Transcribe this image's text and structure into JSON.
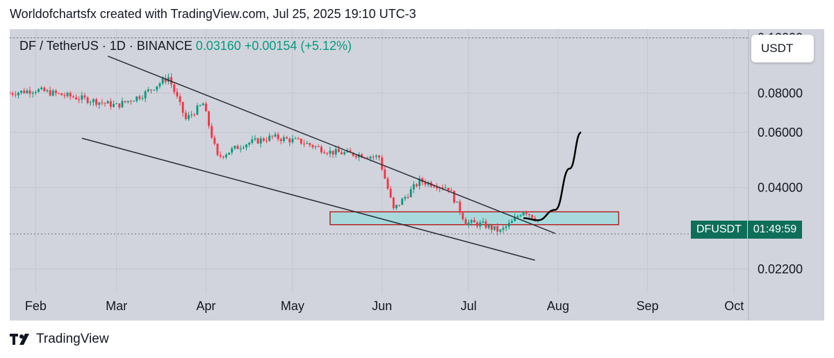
{
  "header": {
    "attribution": "Worldofchartsfx created with TradingView.com, Jul 25, 2025 19:10 UTC-3"
  },
  "legend": {
    "symbol": "DF / TetherUS · 1D · BINANCE",
    "price": "0.03160",
    "change": "+0.00154 (+5.12%)"
  },
  "currency_button": "USDT",
  "price_tag": {
    "symbol": "DFUSDT",
    "countdown": "01:49:59"
  },
  "footer": {
    "brand": "TradingView"
  },
  "colors": {
    "up": "#089981",
    "down": "#f23645",
    "background": "#d1d4dc",
    "zone_fill": "#a8dadd",
    "zone_border": "#b22222"
  },
  "chart_data": {
    "type": "candlestick",
    "x_axis": {
      "labels": [
        "Feb",
        "Mar",
        "Apr",
        "May",
        "Jun",
        "Jul",
        "Aug",
        "Sep",
        "Oct"
      ],
      "range": [
        "2025-01-23",
        "2025-10-06"
      ]
    },
    "y_axis": {
      "scale": "log",
      "labels": [
        "0.12000",
        "0.08000",
        "0.06000",
        "0.04000",
        "0.02200"
      ],
      "range": [
        0.0185,
        0.128
      ]
    },
    "grid": true,
    "series": [
      {
        "x": [
          "2025-01-23",
          "2025-02-01",
          "2025-02-10",
          "2025-02-20",
          "2025-03-01",
          "2025-03-10",
          "2025-03-19",
          "2025-03-25",
          "2025-03-31",
          "2025-04-05",
          "2025-04-14",
          "2025-04-24",
          "2025-05-04",
          "2025-05-14",
          "2025-05-24",
          "2025-05-31",
          "2025-06-05",
          "2025-06-14",
          "2025-06-24",
          "2025-06-30",
          "2025-07-06",
          "2025-07-12",
          "2025-07-16",
          "2025-07-20",
          "2025-07-25"
        ],
        "close": [
          0.08,
          0.082,
          0.079,
          0.076,
          0.073,
          0.079,
          0.09,
          0.066,
          0.074,
          0.05,
          0.055,
          0.058,
          0.056,
          0.052,
          0.051,
          0.05,
          0.034,
          0.042,
          0.04,
          0.031,
          0.0305,
          0.029,
          0.031,
          0.034,
          0.0316
        ]
      }
    ],
    "price_points": {
      "last_price": 0.0316,
      "upper_dotted_line": 0.12,
      "lower_dotted_line": 0.0285
    },
    "zone": {
      "x": [
        "2025-05-14",
        "2025-08-22"
      ],
      "y": [
        0.0305,
        0.0335
      ]
    },
    "trendlines": [
      {
        "x": [
          "2025-02-26",
          "2025-07-31"
        ],
        "y": [
          0.105,
          0.0286
        ]
      },
      {
        "x": [
          "2025-02-17",
          "2025-07-24"
        ],
        "y": [
          0.0575,
          0.0235
        ]
      }
    ],
    "projection": {
      "x": [
        "2025-07-20",
        "2025-07-25",
        "2025-07-31",
        "2025-08-05",
        "2025-08-09"
      ],
      "y": [
        0.032,
        0.0315,
        0.034,
        0.046,
        0.06
      ]
    }
  }
}
